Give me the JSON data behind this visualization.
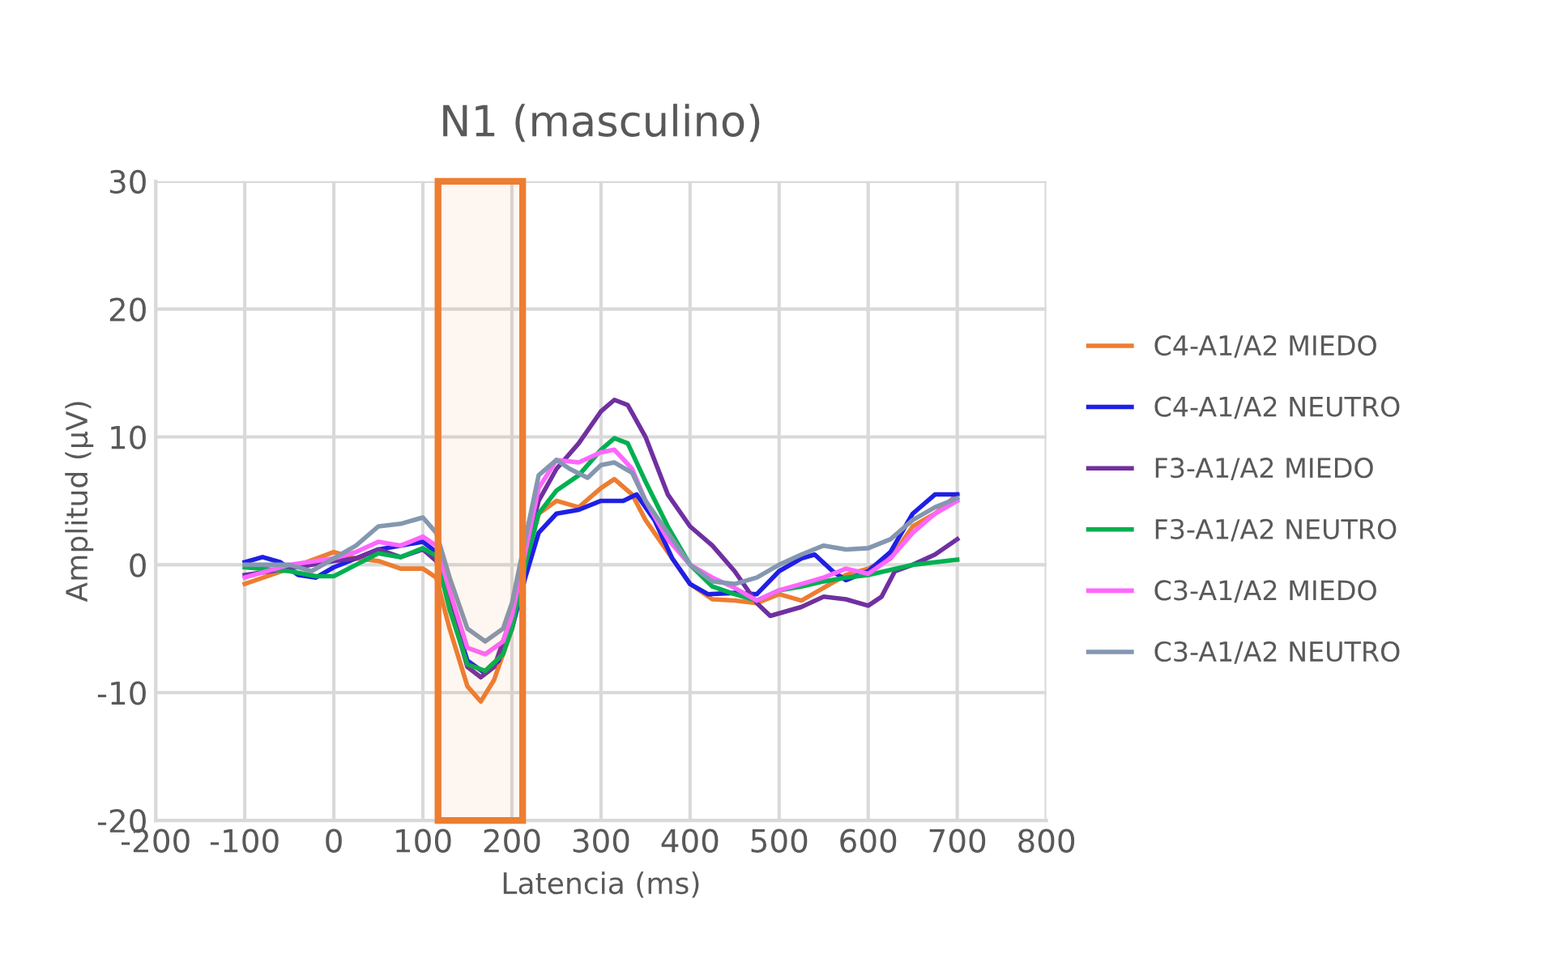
{
  "chart_data": {
    "type": "line",
    "title": "N1 (masculino)",
    "xlabel": "Latencia (ms)",
    "ylabel": "Amplitud (µV)",
    "xlim": [
      -200,
      800
    ],
    "xticks": [
      -200,
      -100,
      0,
      100,
      200,
      300,
      400,
      500,
      600,
      700,
      800
    ],
    "ylim": [
      -20,
      30
    ],
    "yticks": [
      -20,
      -10,
      0,
      10,
      20,
      30
    ],
    "grid": true,
    "legend": "right",
    "bands": [
      {
        "axis": "x",
        "from": 117,
        "to": 212,
        "color": "#ed7d31"
      }
    ],
    "series": [
      {
        "name": "C4-A1/A2 MIEDO",
        "color": "#ed7d31",
        "x": [
          -100,
          -50,
          0,
          25,
          50,
          75,
          100,
          115,
          130,
          150,
          165,
          180,
          200,
          215,
          230,
          250,
          275,
          300,
          315,
          335,
          350,
          375,
          400,
          425,
          450,
          475,
          500,
          525,
          550,
          575,
          600,
          625,
          650,
          675,
          700
        ],
        "values": [
          -1.5,
          -0.3,
          1.0,
          0.5,
          0.3,
          -0.3,
          -0.3,
          -1,
          -5,
          -9.5,
          -10.7,
          -9,
          -5,
          0,
          4,
          5,
          4.5,
          6,
          6.7,
          5.5,
          3.5,
          1,
          -1.5,
          -2.7,
          -2.8,
          -3,
          -2.3,
          -2.8,
          -1.8,
          -0.8,
          -0.3,
          0.5,
          3,
          4,
          5.5
        ]
      },
      {
        "name": "C4-A1/A2 NEUTRO",
        "color": "#1f1fe6",
        "x": [
          -100,
          -80,
          -60,
          -40,
          -20,
          0,
          25,
          50,
          75,
          100,
          115,
          130,
          150,
          170,
          185,
          200,
          215,
          230,
          250,
          275,
          300,
          325,
          340,
          360,
          380,
          400,
          420,
          450,
          475,
          500,
          525,
          540,
          560,
          575,
          600,
          625,
          650,
          675,
          700
        ],
        "values": [
          0.2,
          0.6,
          0.2,
          -0.8,
          -1,
          -0.2,
          0.5,
          1.2,
          1.5,
          1.8,
          1.0,
          -3,
          -7.5,
          -8.5,
          -7.5,
          -5,
          -1,
          2.5,
          4,
          4.3,
          5,
          5,
          5.5,
          3.5,
          0.5,
          -1.5,
          -2.3,
          -2.2,
          -2.3,
          -0.5,
          0.5,
          0.8,
          -0.5,
          -1.2,
          -0.5,
          1.0,
          4,
          5.5,
          5.5
        ]
      },
      {
        "name": "F3-A1/A2 MIEDO",
        "color": "#7030a0",
        "x": [
          -100,
          -50,
          0,
          25,
          50,
          75,
          100,
          115,
          130,
          150,
          165,
          180,
          200,
          215,
          230,
          250,
          275,
          300,
          315,
          330,
          350,
          375,
          400,
          425,
          450,
          475,
          490,
          525,
          550,
          575,
          600,
          615,
          630,
          650,
          675,
          700
        ],
        "values": [
          -0.8,
          -0.3,
          0.3,
          0.5,
          1.2,
          0.6,
          1.2,
          0.3,
          -3,
          -8,
          -8.8,
          -8,
          -4,
          1,
          5,
          7.5,
          9.5,
          12,
          12.9,
          12.5,
          10,
          5.5,
          3,
          1.5,
          -0.5,
          -3,
          -4,
          -3.3,
          -2.5,
          -2.7,
          -3.2,
          -2.5,
          -0.5,
          0,
          0.8,
          2
        ]
      },
      {
        "name": "F3-A1/A2 NEUTRO",
        "color": "#00b050",
        "x": [
          -100,
          -50,
          -20,
          0,
          25,
          50,
          75,
          100,
          115,
          130,
          150,
          170,
          190,
          200,
          215,
          230,
          250,
          275,
          300,
          315,
          330,
          350,
          375,
          400,
          425,
          450,
          475,
          500,
          525,
          550,
          575,
          600,
          625,
          650,
          675,
          700
        ],
        "values": [
          -0.2,
          -0.5,
          -0.9,
          -0.9,
          0,
          0.9,
          0.6,
          1.3,
          0.7,
          -3.5,
          -7.8,
          -8.3,
          -7,
          -5,
          0,
          4,
          5.8,
          7,
          9,
          9.9,
          9.5,
          6.5,
          3,
          0,
          -1.7,
          -2.3,
          -2.8,
          -2,
          -1.7,
          -1.3,
          -1,
          -0.8,
          -0.4,
          0,
          0.2,
          0.4
        ]
      },
      {
        "name": "C3-A1/A2 MIEDO",
        "color": "#ff66ff",
        "x": [
          -100,
          -50,
          0,
          25,
          50,
          75,
          100,
          115,
          130,
          150,
          170,
          190,
          200,
          215,
          230,
          250,
          275,
          300,
          315,
          335,
          350,
          375,
          400,
          425,
          450,
          475,
          500,
          525,
          550,
          575,
          600,
          625,
          650,
          675,
          700
        ],
        "values": [
          -1,
          0,
          0.5,
          1,
          1.8,
          1.5,
          2.2,
          1.5,
          -2,
          -6.5,
          -7,
          -6,
          -4,
          1,
          6,
          8.2,
          8,
          8.8,
          9,
          7.5,
          5,
          2,
          0,
          -1,
          -1.8,
          -2.8,
          -2,
          -1.5,
          -1,
          -0.3,
          -0.7,
          0.5,
          2.5,
          4,
          5
        ]
      },
      {
        "name": "C3-A1/A2 NEUTRO",
        "color": "#8497b0",
        "x": [
          -100,
          -50,
          -25,
          0,
          25,
          50,
          75,
          100,
          115,
          130,
          150,
          170,
          190,
          200,
          215,
          230,
          250,
          265,
          285,
          300,
          315,
          335,
          350,
          375,
          400,
          425,
          450,
          475,
          500,
          525,
          550,
          575,
          600,
          625,
          650,
          675,
          700
        ],
        "values": [
          0,
          0,
          -0.5,
          0.5,
          1.5,
          3,
          3.2,
          3.7,
          2.5,
          -1,
          -5,
          -6,
          -5,
          -3,
          2,
          7,
          8.2,
          7.5,
          6.8,
          7.8,
          8,
          7.2,
          5,
          2.5,
          0,
          -1.3,
          -1.5,
          -1,
          0,
          0.8,
          1.5,
          1.2,
          1.3,
          2,
          3.5,
          4.5,
          5.2
        ]
      }
    ]
  }
}
